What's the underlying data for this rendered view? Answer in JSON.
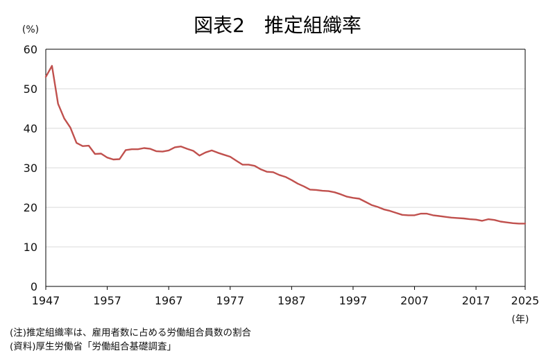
{
  "title": "図表2　推定組織率",
  "note_line1": "(注)推定組織率は、雇用者数に占める労働組合員数の割合",
  "note_line2": "(資料)厚生労働省「労働組合基礎調査」",
  "colors": {
    "line": "#c0504d",
    "grid": "#d9d9d9",
    "axis": "#000000"
  },
  "chart_data": {
    "type": "line",
    "title": "図表2　推定組織率",
    "y_unit": "(%)",
    "x_unit": "(年)",
    "xlim": [
      1947,
      2025
    ],
    "ylim": [
      0,
      60
    ],
    "x_ticks": [
      1947,
      1957,
      1967,
      1977,
      1987,
      1997,
      2007,
      2017,
      2025
    ],
    "y_ticks": [
      0,
      10,
      20,
      30,
      40,
      50,
      60
    ],
    "grid": true,
    "legend": "none",
    "series": [
      {
        "x": [
          1947,
          1948,
          1949,
          1950,
          1951,
          1952,
          1953,
          1954,
          1955,
          1956,
          1957,
          1958,
          1959,
          1960,
          1961,
          1962,
          1963,
          1964,
          1965,
          1966,
          1967,
          1968,
          1969,
          1970,
          1971,
          1972,
          1973,
          1974,
          1975,
          1976,
          1977,
          1978,
          1979,
          1980,
          1981,
          1982,
          1983,
          1984,
          1985,
          1986,
          1987,
          1988,
          1989,
          1990,
          1991,
          1992,
          1993,
          1994,
          1995,
          1996,
          1997,
          1998,
          1999,
          2000,
          2001,
          2002,
          2003,
          2004,
          2005,
          2006,
          2007,
          2008,
          2009,
          2010,
          2011,
          2012,
          2013,
          2014,
          2015,
          2016,
          2017,
          2018,
          2019,
          2020,
          2021,
          2022,
          2023,
          2024,
          2025
        ],
        "y": [
          53.0,
          55.8,
          46.2,
          42.5,
          40.2,
          36.3,
          35.5,
          35.6,
          33.5,
          33.6,
          32.6,
          32.1,
          32.2,
          34.5,
          34.7,
          34.7,
          35.0,
          34.8,
          34.2,
          34.1,
          34.4,
          35.2,
          35.4,
          34.8,
          34.3,
          33.1,
          33.9,
          34.4,
          33.8,
          33.3,
          32.8,
          31.8,
          30.8,
          30.8,
          30.5,
          29.6,
          29.0,
          28.9,
          28.2,
          27.7,
          26.9,
          26.0,
          25.3,
          24.5,
          24.4,
          24.2,
          24.1,
          23.8,
          23.3,
          22.7,
          22.4,
          22.2,
          21.4,
          20.6,
          20.1,
          19.5,
          19.1,
          18.6,
          18.1,
          18.0,
          18.0,
          18.4,
          18.4,
          18.0,
          17.8,
          17.6,
          17.4,
          17.3,
          17.2,
          17.0,
          16.9,
          16.6,
          17.0,
          16.8,
          16.4,
          16.2,
          16.0,
          15.9,
          15.9
        ]
      }
    ]
  }
}
